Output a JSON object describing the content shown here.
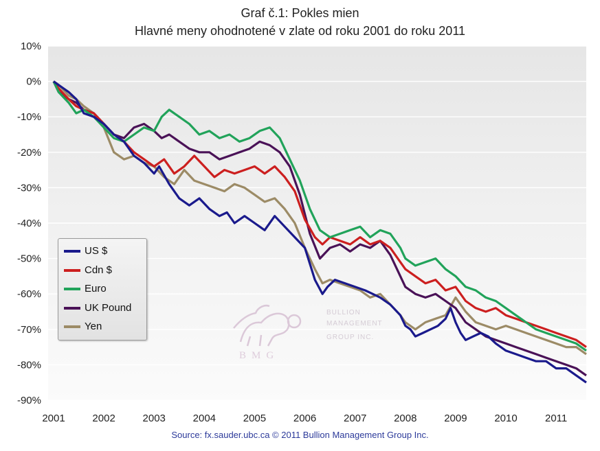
{
  "chart_data": {
    "type": "line",
    "title": "Graf č.1: Pokles mien",
    "subtitle": "Hlavné meny ohodnotené v zlate od roku 2001 do roku 2011",
    "source": "Source: fx.sauder.ubc.ca © 2011 Bullion Management Group Inc.",
    "xlim": [
      2001,
      2011.6
    ],
    "ylim": [
      -90,
      10
    ],
    "x_ticks": [
      "2001",
      "2002",
      "2003",
      "2004",
      "2005",
      "2006",
      "2007",
      "2008",
      "2009",
      "2010",
      "2011"
    ],
    "y_ticks": [
      "10%",
      "0%",
      "-10%",
      "-20%",
      "-30%",
      "-40%",
      "-50%",
      "-60%",
      "-70%",
      "-80%",
      "-90%"
    ],
    "grid": "horizontal",
    "legend_position": "lower-left",
    "series": [
      {
        "name": "US $",
        "color": "#1a1a8c",
        "x": [
          2001.0,
          2001.1,
          2001.3,
          2001.45,
          2001.6,
          2001.8,
          2002.0,
          2002.2,
          2002.4,
          2002.6,
          2002.8,
          2003.0,
          2003.1,
          2003.3,
          2003.5,
          2003.7,
          2003.9,
          2004.1,
          2004.3,
          2004.45,
          2004.6,
          2004.8,
          2005.0,
          2005.2,
          2005.4,
          2005.6,
          2005.8,
          2006.0,
          2006.2,
          2006.35,
          2006.45,
          2006.6,
          2006.8,
          2007.0,
          2007.2,
          2007.35,
          2007.5,
          2007.7,
          2007.9,
          2008.0,
          2008.1,
          2008.2,
          2008.35,
          2008.5,
          2008.65,
          2008.8,
          2008.9,
          2009.0,
          2009.1,
          2009.2,
          2009.35,
          2009.5,
          2009.65,
          2009.8,
          2010.0,
          2010.2,
          2010.4,
          2010.6,
          2010.8,
          2011.0,
          2011.2,
          2011.4,
          2011.6
        ],
        "y": [
          0,
          -1,
          -3,
          -5,
          -9,
          -10,
          -12,
          -15,
          -17,
          -21,
          -23,
          -26,
          -24,
          -29,
          -33,
          -35,
          -33,
          -36,
          -38,
          -37,
          -40,
          -38,
          -40,
          -42,
          -38,
          -41,
          -44,
          -47,
          -56,
          -60,
          -58,
          -56,
          -57,
          -58,
          -59,
          -60,
          -61,
          -63,
          -66,
          -69,
          -70,
          -72,
          -71,
          -70,
          -69,
          -67,
          -64,
          -68,
          -71,
          -73,
          -72,
          -71,
          -72,
          -74,
          -76,
          -77,
          -78,
          -79,
          -79,
          -81,
          -81,
          -83,
          -85
        ]
      },
      {
        "name": "Cdn $",
        "color": "#cc1f1f",
        "x": [
          2001.0,
          2001.1,
          2001.3,
          2001.45,
          2001.6,
          2001.8,
          2002.0,
          2002.2,
          2002.4,
          2002.6,
          2002.8,
          2003.0,
          2003.2,
          2003.4,
          2003.6,
          2003.8,
          2004.0,
          2004.2,
          2004.4,
          2004.6,
          2004.8,
          2005.0,
          2005.2,
          2005.4,
          2005.6,
          2005.8,
          2006.0,
          2006.2,
          2006.35,
          2006.5,
          2006.7,
          2006.9,
          2007.1,
          2007.3,
          2007.5,
          2007.7,
          2007.9,
          2008.0,
          2008.2,
          2008.4,
          2008.6,
          2008.8,
          2009.0,
          2009.2,
          2009.4,
          2009.6,
          2009.8,
          2010.0,
          2010.2,
          2010.4,
          2010.6,
          2010.8,
          2011.0,
          2011.2,
          2011.4,
          2011.6
        ],
        "y": [
          0,
          -2,
          -5,
          -7,
          -8,
          -9,
          -12,
          -15,
          -17,
          -20,
          -22,
          -24,
          -22,
          -26,
          -24,
          -21,
          -24,
          -27,
          -25,
          -26,
          -25,
          -24,
          -26,
          -24,
          -27,
          -31,
          -39,
          -44,
          -46,
          -44,
          -45,
          -46,
          -44,
          -46,
          -45,
          -47,
          -51,
          -53,
          -55,
          -57,
          -56,
          -59,
          -58,
          -62,
          -64,
          -65,
          -64,
          -66,
          -67,
          -68,
          -69,
          -70,
          -71,
          -72,
          -73,
          -75
        ]
      },
      {
        "name": "Euro",
        "color": "#21a35a",
        "x": [
          2001.0,
          2001.1,
          2001.3,
          2001.45,
          2001.6,
          2001.8,
          2002.0,
          2002.2,
          2002.4,
          2002.6,
          2002.8,
          2003.0,
          2003.15,
          2003.3,
          2003.5,
          2003.7,
          2003.9,
          2004.1,
          2004.3,
          2004.5,
          2004.7,
          2004.9,
          2005.1,
          2005.3,
          2005.5,
          2005.7,
          2005.9,
          2006.1,
          2006.3,
          2006.5,
          2006.7,
          2006.9,
          2007.1,
          2007.3,
          2007.5,
          2007.7,
          2007.9,
          2008.0,
          2008.2,
          2008.4,
          2008.6,
          2008.8,
          2009.0,
          2009.2,
          2009.4,
          2009.6,
          2009.8,
          2010.0,
          2010.2,
          2010.4,
          2010.6,
          2010.8,
          2011.0,
          2011.2,
          2011.4,
          2011.6
        ],
        "y": [
          0,
          -3,
          -6,
          -9,
          -8,
          -10,
          -13,
          -16,
          -17,
          -15,
          -13,
          -14,
          -10,
          -8,
          -10,
          -12,
          -15,
          -14,
          -16,
          -15,
          -17,
          -16,
          -14,
          -13,
          -16,
          -22,
          -28,
          -36,
          -42,
          -44,
          -43,
          -42,
          -41,
          -44,
          -42,
          -43,
          -47,
          -50,
          -52,
          -51,
          -50,
          -53,
          -55,
          -58,
          -59,
          -61,
          -62,
          -64,
          -66,
          -68,
          -70,
          -71,
          -72,
          -73,
          -74,
          -76
        ]
      },
      {
        "name": "UK Pound",
        "color": "#4a1257",
        "x": [
          2001.0,
          2001.1,
          2001.3,
          2001.45,
          2001.6,
          2001.8,
          2002.0,
          2002.2,
          2002.4,
          2002.6,
          2002.8,
          2003.0,
          2003.15,
          2003.3,
          2003.5,
          2003.7,
          2003.9,
          2004.1,
          2004.3,
          2004.5,
          2004.7,
          2004.9,
          2005.1,
          2005.3,
          2005.5,
          2005.7,
          2005.9,
          2006.1,
          2006.3,
          2006.5,
          2006.7,
          2006.9,
          2007.1,
          2007.3,
          2007.5,
          2007.7,
          2007.9,
          2008.0,
          2008.2,
          2008.4,
          2008.6,
          2008.8,
          2009.0,
          2009.2,
          2009.4,
          2009.6,
          2009.8,
          2010.0,
          2010.2,
          2010.4,
          2010.6,
          2010.8,
          2011.0,
          2011.2,
          2011.4,
          2011.6
        ],
        "y": [
          0,
          -3,
          -5,
          -6,
          -8,
          -9,
          -12,
          -15,
          -16,
          -13,
          -12,
          -14,
          -16,
          -15,
          -17,
          -19,
          -20,
          -20,
          -22,
          -21,
          -20,
          -19,
          -17,
          -18,
          -20,
          -24,
          -32,
          -43,
          -50,
          -47,
          -46,
          -48,
          -46,
          -47,
          -45,
          -49,
          -55,
          -58,
          -60,
          -61,
          -60,
          -62,
          -64,
          -68,
          -70,
          -72,
          -73,
          -74,
          -75,
          -76,
          -77,
          -78,
          -79,
          -80,
          -81,
          -83
        ]
      },
      {
        "name": "Yen",
        "color": "#9c8b66",
        "x": [
          2001.0,
          2001.1,
          2001.3,
          2001.45,
          2001.6,
          2001.8,
          2002.0,
          2002.2,
          2002.4,
          2002.6,
          2002.8,
          2003.0,
          2003.2,
          2003.4,
          2003.6,
          2003.8,
          2004.0,
          2004.2,
          2004.4,
          2004.6,
          2004.8,
          2005.0,
          2005.2,
          2005.4,
          2005.6,
          2005.8,
          2006.0,
          2006.2,
          2006.35,
          2006.5,
          2006.7,
          2006.9,
          2007.1,
          2007.3,
          2007.5,
          2007.7,
          2007.9,
          2008.0,
          2008.2,
          2008.4,
          2008.6,
          2008.8,
          2009.0,
          2009.2,
          2009.4,
          2009.6,
          2009.8,
          2010.0,
          2010.2,
          2010.4,
          2010.6,
          2010.8,
          2011.0,
          2011.2,
          2011.4,
          2011.6
        ],
        "y": [
          0,
          -1,
          -4,
          -5,
          -7,
          -9,
          -13,
          -20,
          -22,
          -21,
          -23,
          -24,
          -27,
          -29,
          -25,
          -28,
          -29,
          -30,
          -31,
          -29,
          -30,
          -32,
          -34,
          -33,
          -36,
          -40,
          -47,
          -53,
          -57,
          -56,
          -57,
          -58,
          -59,
          -61,
          -60,
          -63,
          -66,
          -68,
          -70,
          -68,
          -67,
          -66,
          -61,
          -65,
          -68,
          -69,
          -70,
          -69,
          -70,
          -71,
          -72,
          -73,
          -74,
          -75,
          -75,
          -77
        ]
      }
    ]
  },
  "watermark": {
    "name_line1": "BULLION",
    "name_line2": "MANAGEMENT",
    "name_line3": "GROUP INC.",
    "abbr": "BMG",
    "icon": "griffin-logo"
  },
  "colors": {
    "plot_bg_top": "#e8e8e8",
    "plot_bg_bottom": "#fbfbfb",
    "grid": "#ffffff"
  }
}
